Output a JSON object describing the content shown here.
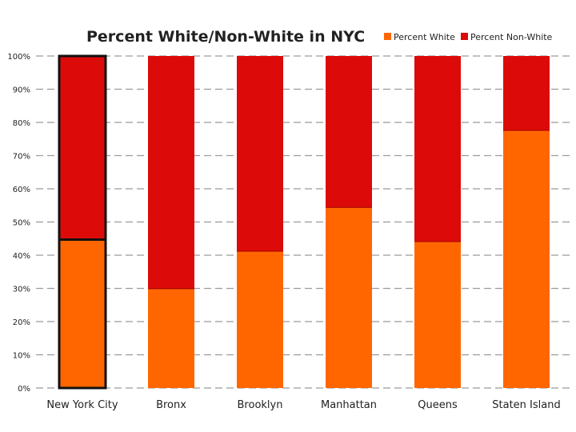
{
  "chart_data": {
    "type": "bar",
    "stacked": true,
    "title": "Percent White/Non-White in NYC",
    "categories": [
      "New York City",
      "Bronx",
      "Brooklyn",
      "Manhattan",
      "Queens",
      "Staten Island"
    ],
    "series": [
      {
        "name": "Percent White",
        "color": "#ff6600",
        "values": [
          44.7,
          29.9,
          41.2,
          54.4,
          44.1,
          77.6
        ]
      },
      {
        "name": "Percent Non-White",
        "color": "#dd0a0a",
        "values": [
          55.3,
          70.1,
          58.8,
          45.6,
          55.9,
          22.4
        ]
      }
    ],
    "highlighted_category": "New York City",
    "ylim": [
      0,
      100
    ],
    "yticks": [
      "0%",
      "10%",
      "20%",
      "30%",
      "40%",
      "50%",
      "60%",
      "70%",
      "80%",
      "90%",
      "100%"
    ],
    "grid": true,
    "legend_position": "top-right"
  }
}
